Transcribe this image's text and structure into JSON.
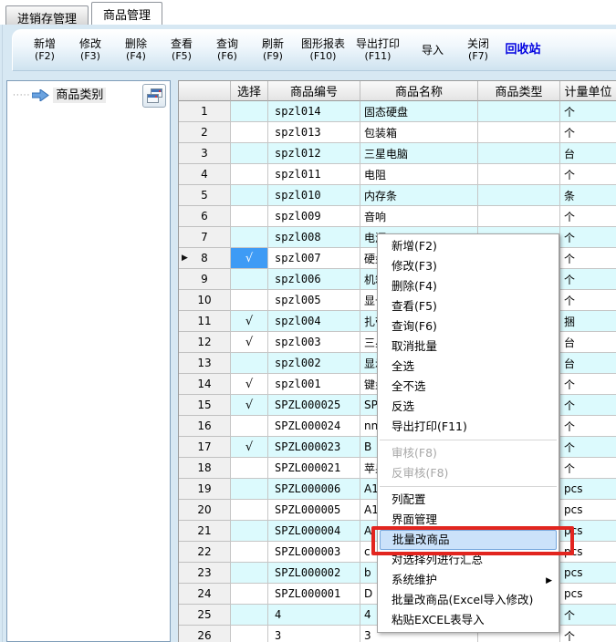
{
  "tabs": [
    {
      "label": "进销存管理",
      "active": false
    },
    {
      "label": "商品管理",
      "active": true
    }
  ],
  "toolbar": {
    "buttons": [
      {
        "name": "add",
        "label": "新增",
        "hotkey": "(F2)",
        "accent": false
      },
      {
        "name": "modify",
        "label": "修改",
        "hotkey": "(F3)",
        "accent": false
      },
      {
        "name": "delete",
        "label": "删除",
        "hotkey": "(F4)",
        "accent": false
      },
      {
        "name": "view",
        "label": "查看",
        "hotkey": "(F5)",
        "accent": false
      },
      {
        "name": "query",
        "label": "查询",
        "hotkey": "(F6)",
        "accent": false
      },
      {
        "name": "refresh",
        "label": "刷新",
        "hotkey": "(F9)",
        "accent": false
      },
      {
        "name": "chart-report",
        "label": "图形报表",
        "hotkey": "(F10)",
        "accent": false
      },
      {
        "name": "export-print",
        "label": "导出打印",
        "hotkey": "(F11)",
        "accent": false
      },
      {
        "name": "import",
        "label": "导入",
        "hotkey": "",
        "accent": false
      },
      {
        "name": "close",
        "label": "关闭",
        "hotkey": "(F7)",
        "accent": false
      },
      {
        "name": "recycle-bin",
        "label": "回收站",
        "hotkey": "",
        "accent": true
      }
    ]
  },
  "sidebar": {
    "tree_root": "商品类别"
  },
  "table": {
    "columns": [
      {
        "key": "row-index",
        "label": ""
      },
      {
        "key": "select",
        "label": "选择"
      },
      {
        "key": "product-code",
        "label": "商品编号"
      },
      {
        "key": "product-name",
        "label": "商品名称"
      },
      {
        "key": "product-type",
        "label": "商品类型"
      },
      {
        "key": "unit",
        "label": "计量单位"
      }
    ],
    "rows": [
      {
        "n": 1,
        "checked": false,
        "focused": false,
        "code": "spzl014",
        "name": "固态硬盘",
        "type": "",
        "unit": "个"
      },
      {
        "n": 2,
        "checked": false,
        "focused": false,
        "code": "spzl013",
        "name": "包装箱",
        "type": "",
        "unit": "个"
      },
      {
        "n": 3,
        "checked": false,
        "focused": false,
        "code": "spzl012",
        "name": "三星电脑",
        "type": "",
        "unit": "台"
      },
      {
        "n": 4,
        "checked": false,
        "focused": false,
        "code": "spzl011",
        "name": "电阻",
        "type": "",
        "unit": "个"
      },
      {
        "n": 5,
        "checked": false,
        "focused": false,
        "code": "spzl010",
        "name": "内存条",
        "type": "",
        "unit": "条"
      },
      {
        "n": 6,
        "checked": false,
        "focused": false,
        "code": "spzl009",
        "name": "音响",
        "type": "",
        "unit": "个"
      },
      {
        "n": 7,
        "checked": false,
        "focused": false,
        "code": "spzl008",
        "name": "电源",
        "type": "",
        "unit": "个"
      },
      {
        "n": 8,
        "checked": true,
        "focused": true,
        "code": "spzl007",
        "name": "硬盘",
        "type": "",
        "unit": "个"
      },
      {
        "n": 9,
        "checked": false,
        "focused": false,
        "code": "spzl006",
        "name": "机箱",
        "type": "",
        "unit": "个"
      },
      {
        "n": 10,
        "checked": false,
        "focused": false,
        "code": "spzl005",
        "name": "显卡",
        "type": "",
        "unit": "个"
      },
      {
        "n": 11,
        "checked": true,
        "focused": false,
        "code": "spzl004",
        "name": "扎带",
        "type": "",
        "unit": "捆"
      },
      {
        "n": 12,
        "checked": true,
        "focused": false,
        "code": "spzl003",
        "name": "三星",
        "type": "",
        "unit": "台"
      },
      {
        "n": 13,
        "checked": false,
        "focused": false,
        "code": "spzl002",
        "name": "显示",
        "type": "",
        "unit": "台"
      },
      {
        "n": 14,
        "checked": true,
        "focused": false,
        "code": "spzl001",
        "name": "键盘",
        "type": "",
        "unit": "个"
      },
      {
        "n": 15,
        "checked": true,
        "focused": false,
        "code": "SPZL000025",
        "name": "SPZI",
        "type": "",
        "unit": "个"
      },
      {
        "n": 16,
        "checked": false,
        "focused": false,
        "code": "SPZL000024",
        "name": "nn",
        "type": "",
        "unit": "个"
      },
      {
        "n": 17,
        "checked": true,
        "focused": false,
        "code": "SPZL000023",
        "name": "B",
        "type": "",
        "unit": "个"
      },
      {
        "n": 18,
        "checked": false,
        "focused": false,
        "code": "SPZL000021",
        "name": "苹果",
        "type": "",
        "unit": "个"
      },
      {
        "n": 19,
        "checked": false,
        "focused": false,
        "code": "SPZL000006",
        "name": "A12",
        "type": "",
        "unit": "pcs"
      },
      {
        "n": 20,
        "checked": false,
        "focused": false,
        "code": "SPZL000005",
        "name": "A11",
        "type": "",
        "unit": "pcs"
      },
      {
        "n": 21,
        "checked": false,
        "focused": false,
        "code": "SPZL000004",
        "name": "A",
        "type": "",
        "unit": "pcs"
      },
      {
        "n": 22,
        "checked": false,
        "focused": false,
        "code": "SPZL000003",
        "name": "c",
        "type": "",
        "unit": "pcs"
      },
      {
        "n": 23,
        "checked": false,
        "focused": false,
        "code": "SPZL000002",
        "name": "b",
        "type": "",
        "unit": "pcs"
      },
      {
        "n": 24,
        "checked": false,
        "focused": false,
        "code": "SPZL000001",
        "name": "D",
        "type": "",
        "unit": "pcs"
      },
      {
        "n": 25,
        "checked": false,
        "focused": false,
        "code": "4",
        "name": "4",
        "type": "",
        "unit": "个"
      },
      {
        "n": 26,
        "checked": false,
        "focused": false,
        "code": "3",
        "name": "3",
        "type": "",
        "unit": "个"
      }
    ]
  },
  "context_menu": {
    "items": [
      {
        "name": "add",
        "label": "新增(F2)"
      },
      {
        "name": "modify",
        "label": "修改(F3)"
      },
      {
        "name": "delete",
        "label": "删除(F4)"
      },
      {
        "name": "view",
        "label": "查看(F5)"
      },
      {
        "name": "query",
        "label": "查询(F6)"
      },
      {
        "name": "cancel-batch",
        "label": "取消批量"
      },
      {
        "name": "select-all",
        "label": "全选"
      },
      {
        "name": "select-none",
        "label": "全不选"
      },
      {
        "name": "invert-selection",
        "label": "反选"
      },
      {
        "name": "export-print",
        "label": "导出打印(F11)"
      },
      {
        "type": "separator"
      },
      {
        "name": "audit",
        "label": "审核(F8)",
        "disabled": true
      },
      {
        "name": "unaudit",
        "label": "反审核(F8)",
        "disabled": true
      },
      {
        "type": "separator"
      },
      {
        "name": "column-config",
        "label": "列配置"
      },
      {
        "name": "ui-management",
        "label": "界面管理"
      },
      {
        "name": "batch-edit-product",
        "label": "批量改商品",
        "highlighted": true
      },
      {
        "name": "summarize-selected-columns",
        "label": "对选择列进行汇总"
      },
      {
        "name": "system-maintenance",
        "label": "系统维护",
        "submenu": true
      },
      {
        "name": "batch-edit-product-excel",
        "label": "批量改商品(Excel导入修改)"
      },
      {
        "name": "paste-excel-import",
        "label": "粘贴EXCEL表导入"
      }
    ]
  },
  "icons": {
    "checkmark": "√",
    "current_row_arrow": "▶",
    "submenu_arrow": "▶",
    "tree_arrow": "blue-right-arrow"
  },
  "colors": {
    "accent_link": "#0000e0",
    "selected_cell_blue": "#3e9bf5",
    "alt_row_cyan": "#dcfafd",
    "menu_highlight": "#cbe2fa",
    "annotation_red": "#e2251f"
  }
}
